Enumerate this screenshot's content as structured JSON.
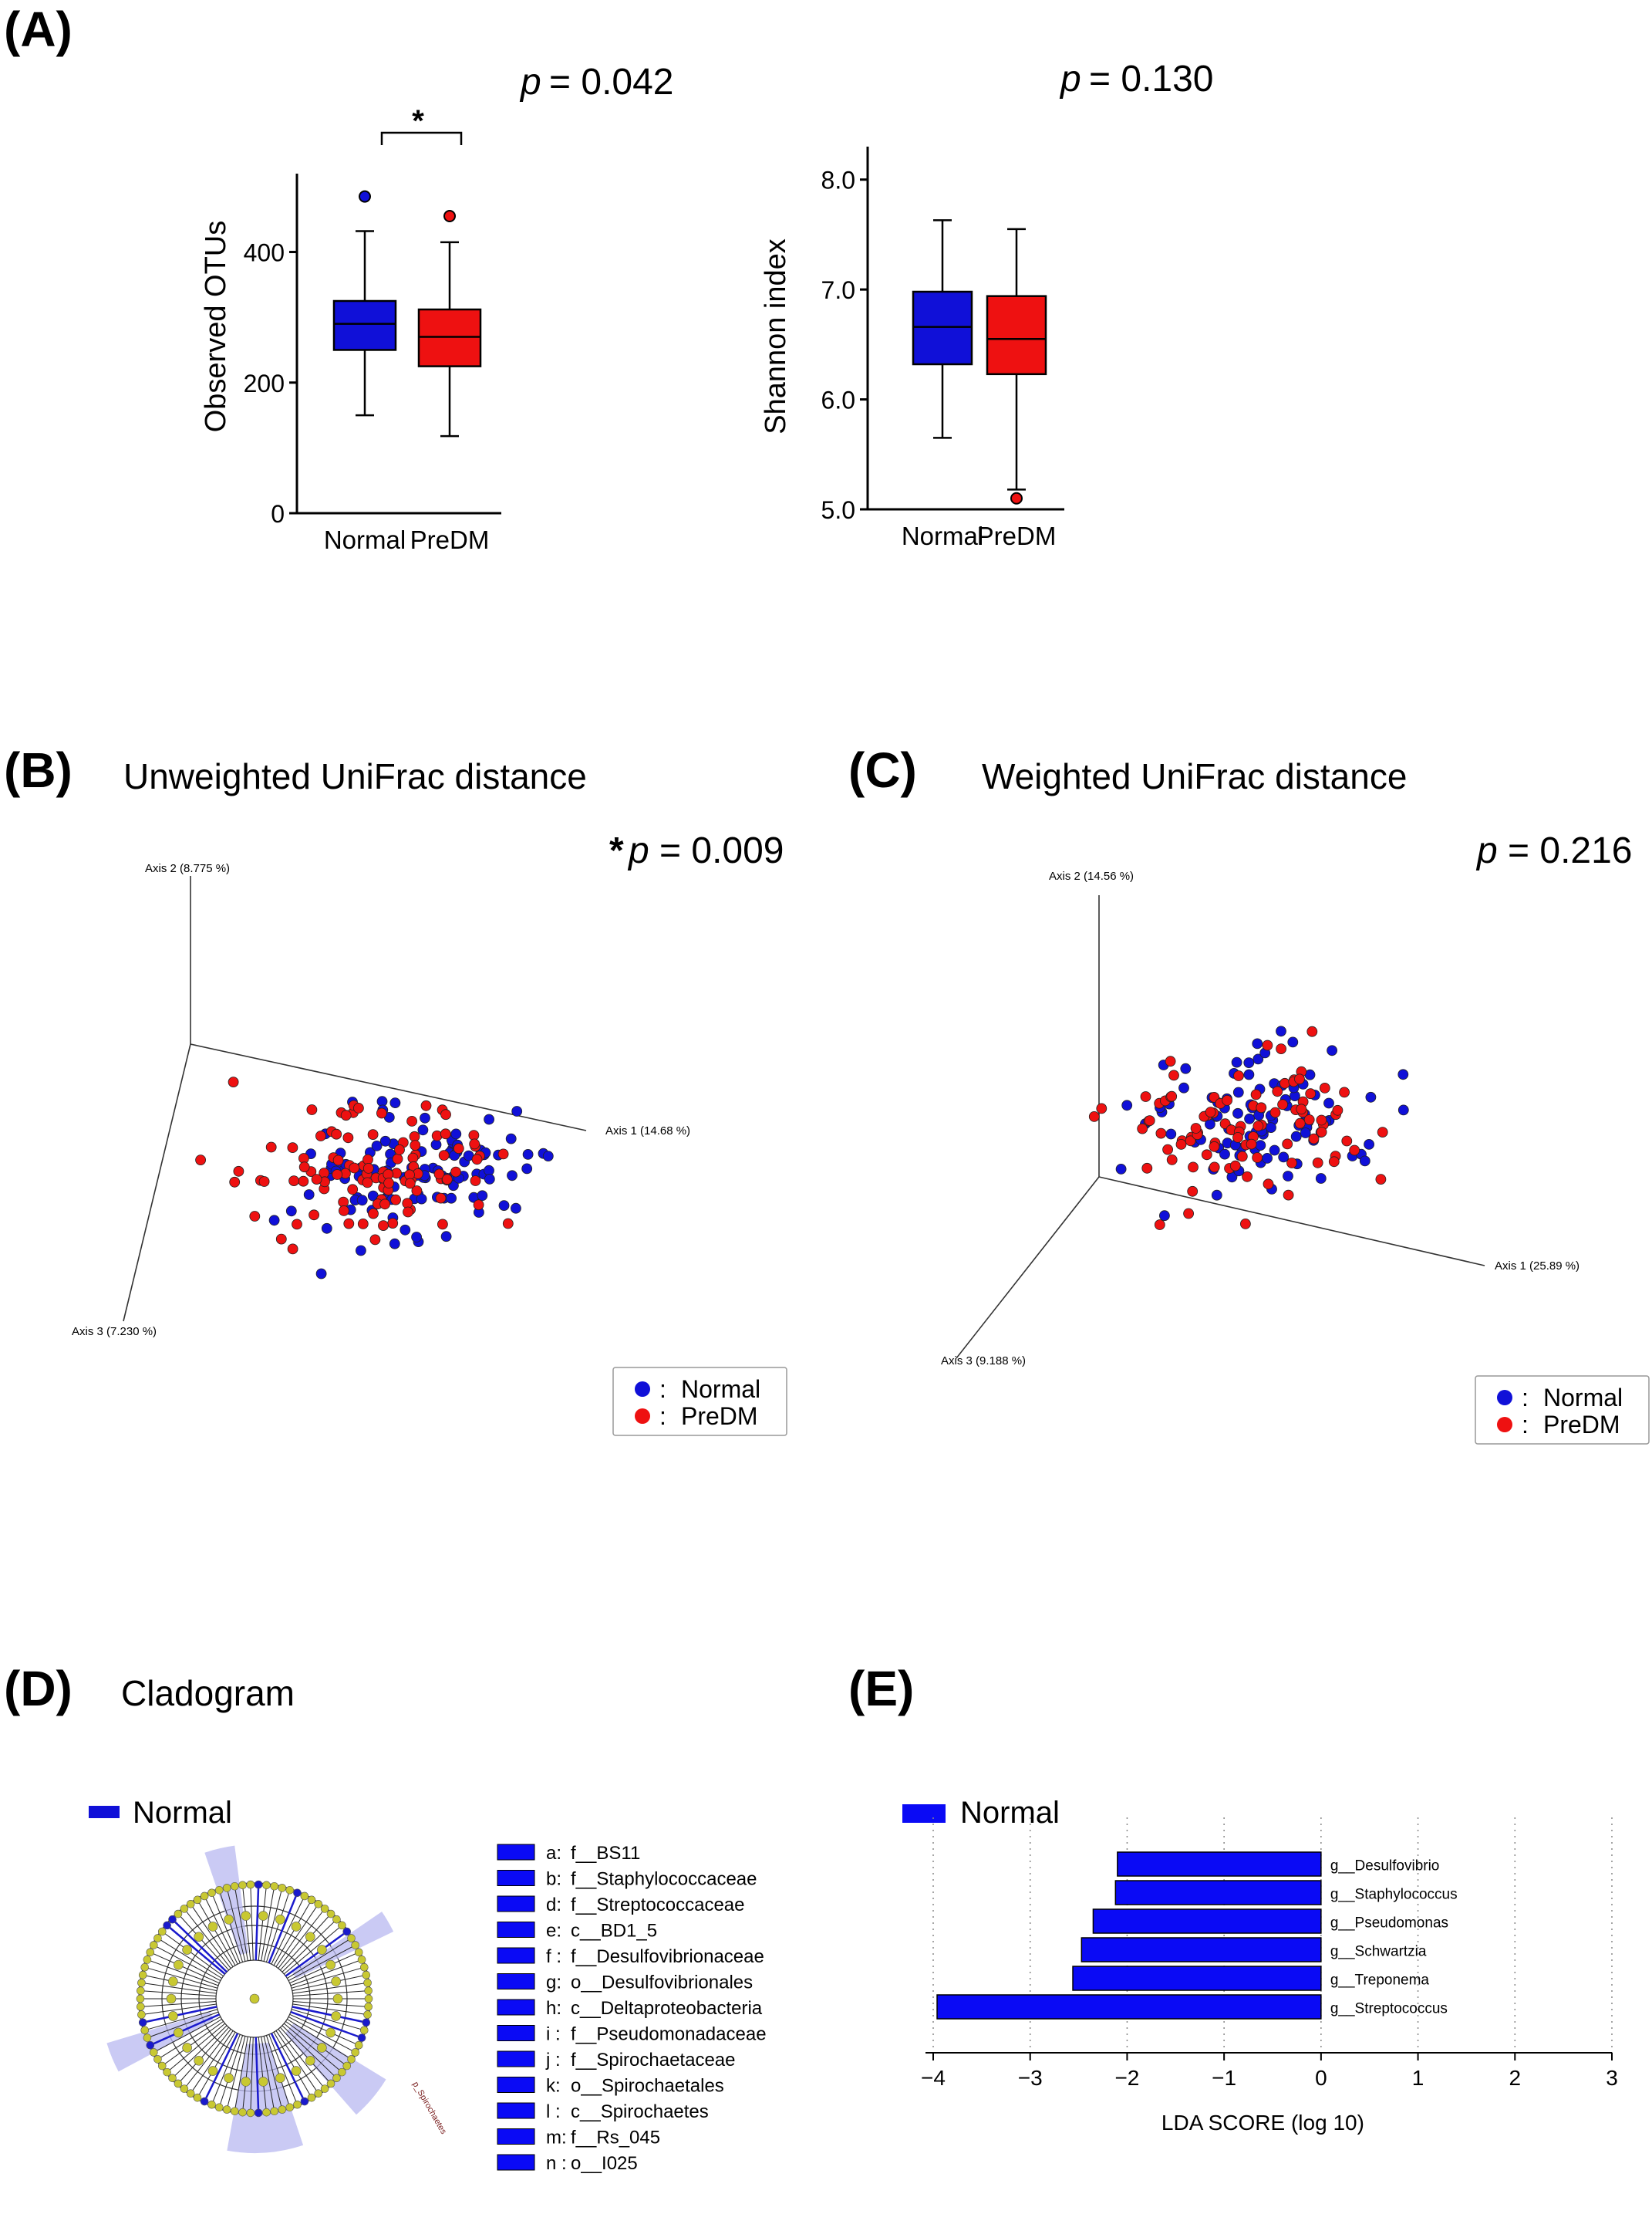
{
  "panels": {
    "A": {
      "letter": "(A)"
    },
    "B": {
      "letter": "(B)",
      "title": "Unweighted UniFrac distance",
      "p_star": "*",
      "p_label": "p",
      "p_value": "= 0.009"
    },
    "C": {
      "letter": "(C)",
      "title": "Weighted UniFrac distance",
      "p_label": "p",
      "p_value": "= 0.216"
    },
    "D": {
      "letter": "(D)",
      "title": "Cladogram",
      "legend_label": "Normal",
      "tree_label": "p_Spirochaetes"
    },
    "E": {
      "letter": "(E)",
      "legend_label": "Normal"
    }
  },
  "colors": {
    "normal": "#1010d8",
    "predm": "#ee1111",
    "clado_node": "#c8c832",
    "clado_highlight": "#b8b8f0",
    "lda_bar": "#0a0af5"
  },
  "chart_data": [
    {
      "id": "observed-otus",
      "type": "box",
      "title": "",
      "ylabel": "Observed OTUs",
      "ylim": [
        0,
        520
      ],
      "yticks": [
        0,
        200,
        400
      ],
      "ytick_labels": [
        "0",
        "200",
        "400"
      ],
      "categories": [
        "Normal",
        "PreDM"
      ],
      "p_label": "p",
      "p_value": "= 0.042",
      "significance": "*",
      "boxes": [
        {
          "name": "Normal",
          "color": "#1010d8",
          "whisker_low": 150,
          "q1": 250,
          "median": 290,
          "q3": 325,
          "whisker_high": 432,
          "outliers": [
            485
          ]
        },
        {
          "name": "PreDM",
          "color": "#ee1111",
          "whisker_low": 118,
          "q1": 225,
          "median": 270,
          "q3": 312,
          "whisker_high": 415,
          "outliers": [
            455
          ]
        }
      ]
    },
    {
      "id": "shannon-index",
      "type": "box",
      "title": "",
      "ylabel": "Shannon index",
      "ylim": [
        5.0,
        8.3
      ],
      "yticks": [
        5.0,
        6.0,
        7.0,
        8.0
      ],
      "ytick_labels": [
        "5.0",
        "6.0",
        "7.0",
        "8.0"
      ],
      "categories": [
        "Normal",
        "PreDM"
      ],
      "p_label": "p",
      "p_value": "= 0.130",
      "boxes": [
        {
          "name": "Normal",
          "color": "#1010d8",
          "whisker_low": 5.65,
          "q1": 6.32,
          "median": 6.66,
          "q3": 6.98,
          "whisker_high": 7.63,
          "outliers": []
        },
        {
          "name": "PreDM",
          "color": "#ee1111",
          "whisker_low": 5.18,
          "q1": 6.23,
          "median": 6.55,
          "q3": 6.94,
          "whisker_high": 7.55,
          "outliers": [
            5.1
          ]
        }
      ]
    },
    {
      "id": "unweighted-unifrac",
      "type": "scatter",
      "title": "Unweighted UniFrac distance",
      "axes": [
        "Axis 1 (14.68 %)",
        "Axis 2 (8.775 %)",
        "Axis 3 (7.230 %)"
      ],
      "legend": [
        "Normal",
        "PreDM"
      ],
      "legend_sep": ":",
      "series": [
        {
          "name": "Normal",
          "count": 110
        },
        {
          "name": "PreDM",
          "count": 110
        }
      ],
      "p_value": "*p = 0.009"
    },
    {
      "id": "weighted-unifrac",
      "type": "scatter",
      "title": "Weighted UniFrac distance",
      "axes": [
        "Axis 1 (25.89 %)",
        "Axis 2 (14.56 %)",
        "Axis 3 (9.188 %)"
      ],
      "legend": [
        "Normal",
        "PreDM"
      ],
      "legend_sep": ":",
      "series": [
        {
          "name": "Normal",
          "count": 95
        },
        {
          "name": "PreDM",
          "count": 95
        }
      ],
      "p_value": "p = 0.216"
    },
    {
      "id": "lda-score",
      "type": "bar",
      "orientation": "horizontal",
      "xlabel": "LDA SCORE (log 10)",
      "xlim": [
        -4,
        3
      ],
      "xticks": [
        -4,
        -3,
        -2,
        -1,
        0,
        1,
        2,
        3
      ],
      "xtick_labels": [
        "−4",
        "−3",
        "−2",
        "−1",
        "0",
        "1",
        "2",
        "3"
      ],
      "legend": [
        "Normal"
      ],
      "categories": [
        "g__Desulfovibrio",
        "g__Staphylococcus",
        "g__Pseudomonas",
        "g__Schwartzia",
        "g__Treponema",
        "g__Streptococcus"
      ],
      "values": [
        -2.1,
        -2.12,
        -2.35,
        -2.47,
        -2.56,
        -3.96
      ]
    }
  ],
  "cladogram_legend": [
    {
      "key": "a:",
      "name": "f__BS11"
    },
    {
      "key": "b:",
      "name": "f__Staphylococcaceae"
    },
    {
      "key": "d:",
      "name": "f__Streptococcaceae"
    },
    {
      "key": "e:",
      "name": "c__BD1_5"
    },
    {
      "key": "f :",
      "name": "f__Desulfovibrionaceae"
    },
    {
      "key": "g:",
      "name": "o__Desulfovibrionales"
    },
    {
      "key": "h:",
      "name": "c__Deltaproteobacteria"
    },
    {
      "key": "i :",
      "name": "f__Pseudomonadaceae"
    },
    {
      "key": "j :",
      "name": "f__Spirochaetaceae"
    },
    {
      "key": "k:",
      "name": "o__Spirochaetales"
    },
    {
      "key": "l :",
      "name": "c__Spirochaetes"
    },
    {
      "key": "m:",
      "name": "f__Rs_045"
    },
    {
      "key": "n :",
      "name": "o__I025"
    }
  ]
}
